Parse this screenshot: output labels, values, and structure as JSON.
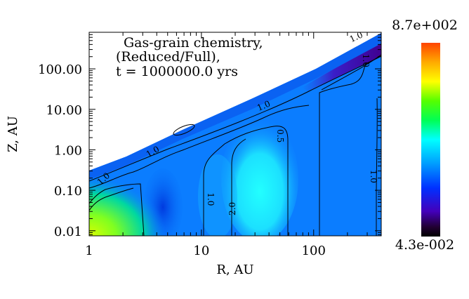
{
  "chart_data": {
    "type": "heatmap",
    "title_lines": [
      "Gas-grain chemistry,",
      "(Reduced/Full),",
      "t = 1000000.0 yrs"
    ],
    "xlabel": "R, AU",
    "ylabel": "Z, AU",
    "x_scale": "log",
    "y_scale": "log",
    "xlim": [
      1,
      400
    ],
    "ylim": [
      0.0075,
      800
    ],
    "x_ticks": [
      1,
      10,
      100
    ],
    "x_tick_labels": [
      "1",
      "10",
      "100"
    ],
    "y_ticks": [
      0.01,
      0.1,
      1,
      10,
      100
    ],
    "y_tick_labels": [
      "0.01",
      "0.10",
      "1.00",
      "10.00",
      "100.00"
    ],
    "colorbar": {
      "max_label": "8.7e+002",
      "min_label": "4.3e-002",
      "colormap": "rainbow",
      "colors": [
        "#ff4400",
        "#ffaa00",
        "#ffff00",
        "#55ff00",
        "#00ff55",
        "#00ffff",
        "#00a0ff",
        "#0030ff",
        "#4400bb",
        "#220033",
        "#000000"
      ]
    },
    "contour_labels": [
      {
        "text": "1.0",
        "r": 3.7,
        "z": 0.88,
        "angle": -30
      },
      {
        "text": "1.0",
        "r": 1.35,
        "z": 0.19,
        "angle": -42
      },
      {
        "text": "1.0",
        "r": 12.0,
        "z": 0.06,
        "angle": 90
      },
      {
        "text": "2.0",
        "r": 19.0,
        "z": 0.035,
        "angle": -90
      },
      {
        "text": "0.5",
        "r": 50.0,
        "z": 2.2,
        "angle": 90
      },
      {
        "text": "1.0",
        "r": 36.0,
        "z": 12.0,
        "angle": -23
      },
      {
        "text": "1.0",
        "r": 290.0,
        "z": 160.0,
        "angle": 90
      },
      {
        "text": "1.0",
        "r": 240.0,
        "z": 600.0,
        "angle": -25
      },
      {
        "text": "1.0",
        "r": 340.0,
        "z": 0.22,
        "angle": 90
      }
    ]
  }
}
